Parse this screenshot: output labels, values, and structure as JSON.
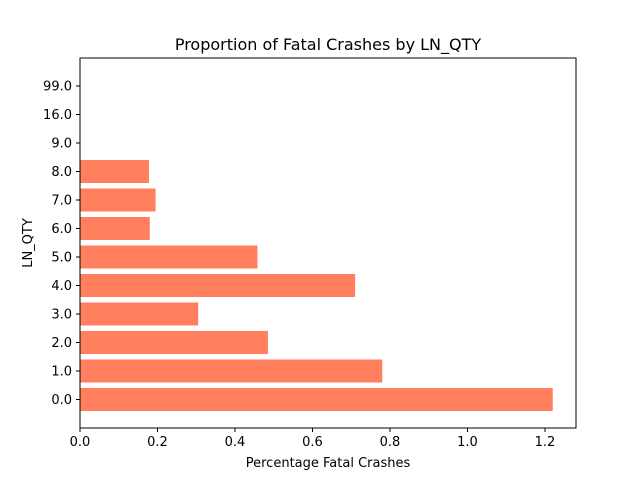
{
  "chart_data": {
    "type": "bar",
    "orientation": "horizontal",
    "title": "Proportion of Fatal Crashes by LN_QTY",
    "xlabel": "Percentage Fatal Crashes",
    "ylabel": "LN_QTY",
    "categories": [
      "0.0",
      "1.0",
      "2.0",
      "3.0",
      "4.0",
      "5.0",
      "6.0",
      "7.0",
      "8.0",
      "9.0",
      "16.0",
      "99.0"
    ],
    "values": [
      1.22,
      0.78,
      0.485,
      0.305,
      0.71,
      0.458,
      0.18,
      0.195,
      0.178,
      0,
      0,
      0
    ],
    "xlim": [
      0,
      1.28
    ],
    "xticks": [
      "0.0",
      "0.2",
      "0.4",
      "0.6",
      "0.8",
      "1.0",
      "1.2"
    ],
    "grid": false,
    "bar_color": "#ff7f5e"
  }
}
